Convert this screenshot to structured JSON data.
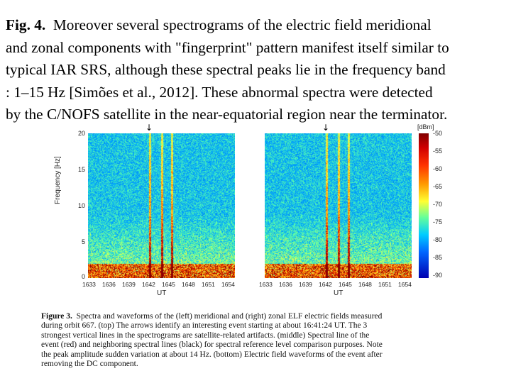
{
  "slide": {
    "fig_label": "Fig. 4.",
    "lines": [
      "Moreover several spectrograms of the electric field meridional",
      "and zonal components with \"fingerprint\" pattern manifest itself similar to",
      "typical IAR SRS, although these spectral peaks lie in the frequency band",
      ": 1–15 Hz [Simões et al., 2012]. These abnormal spectra were detected",
      "by the C/NOFS satellite in the near-equatorial region near the terminator."
    ]
  },
  "figure": {
    "y_axis_label": "Frequency [Hz]",
    "y_ticks": [
      "20",
      "15",
      "10",
      "5",
      "0"
    ],
    "x_ticks": [
      "1633",
      "1636",
      "1639",
      "1642",
      "1645",
      "1648",
      "1651",
      "1654"
    ],
    "x_axis_label": "UT",
    "arrow_glyph": "↓",
    "colorbar": {
      "unit": "[dBm]",
      "ticks": [
        "-50",
        "-55",
        "-60",
        "-65",
        "-70",
        "-75",
        "-80",
        "-85",
        "-90"
      ]
    },
    "colors": {
      "background_blue": "#1f66d6",
      "high": "#d00000",
      "mid": "#ffff33"
    }
  },
  "caption": {
    "label": "Figure 3.",
    "lines": [
      "Spectra and waveforms of the (left) meridional and (right) zonal ELF electric fields measured",
      "during orbit 667. (top) The arrows identify an interesting event starting at about 16:41:24 UT. The 3",
      "strongest vertical lines in the spectrograms are satellite-related artifacts. (middle) Spectral line of the",
      "event (red) and neighboring spectral lines (black) for spectral reference level comparison purposes. Note",
      "the peak amplitude sudden variation at about 14 Hz. (bottom) Electric field waveforms of the event after",
      "removing the DC component."
    ]
  }
}
